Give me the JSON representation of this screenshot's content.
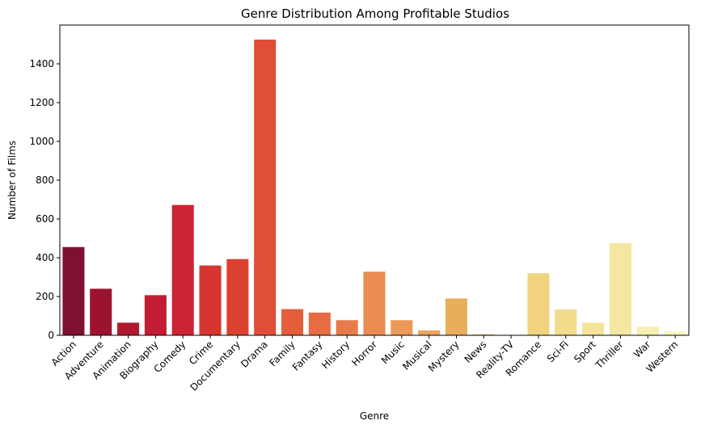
{
  "chart_data": {
    "type": "bar",
    "title": "Genre Distribution Among Profitable Studios",
    "xlabel": "Genre",
    "ylabel": "Number of Films",
    "ylim": [
      0,
      1600
    ],
    "yticks": [
      0,
      200,
      400,
      600,
      800,
      1000,
      1200,
      1400
    ],
    "grid": false,
    "legend": "none",
    "categories": [
      "Action",
      "Adventure",
      "Animation",
      "Biography",
      "Comedy",
      "Crime",
      "Documentary",
      "Drama",
      "Family",
      "Fantasy",
      "History",
      "Horror",
      "Music",
      "Musical",
      "Mystery",
      "News",
      "Reality-TV",
      "Romance",
      "Sci-Fi",
      "Sport",
      "Thriller",
      "War",
      "Western"
    ],
    "values": [
      455,
      240,
      65,
      207,
      672,
      360,
      393,
      1525,
      135,
      117,
      78,
      328,
      78,
      25,
      190,
      5,
      1,
      320,
      133,
      65,
      476,
      45,
      20
    ],
    "colors": [
      "#7e1130",
      "#9b1330",
      "#b01a30",
      "#c21d33",
      "#cc2333",
      "#d63530",
      "#dc4130",
      "#e04e3a",
      "#e45e3c",
      "#e76c43",
      "#e97a4a",
      "#e98d53",
      "#ec9a58",
      "#eca55e",
      "#e8ae5c",
      "#ebbd6a",
      "#eec676",
      "#f0d27f",
      "#f3dc8c",
      "#f4e39a",
      "#f5e6a3",
      "#f7eeb3",
      "#f9f4c1"
    ]
  }
}
